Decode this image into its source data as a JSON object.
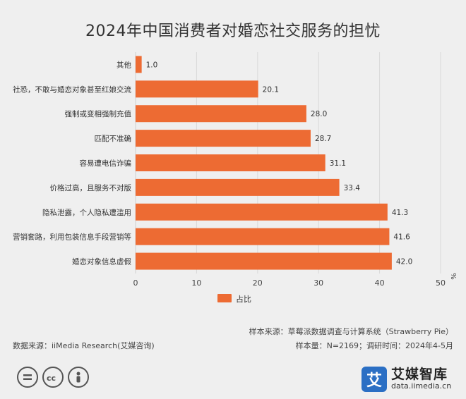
{
  "chart_data": {
    "type": "bar",
    "orientation": "horizontal",
    "title": "2024年中国消费者对婚恋社交服务的担忧",
    "categories": [
      "其他",
      "社恐，不敢与婚恋对象甚至红娘交流",
      "强制或变相强制充值",
      "匹配不准确",
      "容易遭电信诈骗",
      "价格过高，且服务不对版",
      "隐私泄露，个人隐私遭滥用",
      "营销套路，利用包装信息手段营销等",
      "婚恋对象信息虚假"
    ],
    "series": [
      {
        "name": "占比",
        "values": [
          1.0,
          20.1,
          28.0,
          28.7,
          31.1,
          33.4,
          41.3,
          41.6,
          42.0
        ],
        "color": "#ed6b33"
      }
    ],
    "data_labels": [
      "1.0",
      "20.1",
      "28.0",
      "28.7",
      "31.1",
      "33.4",
      "41.3",
      "41.6",
      "42.0"
    ],
    "xlim": [
      0,
      50
    ],
    "xticks": [
      0,
      10,
      20,
      30,
      40,
      50
    ],
    "x_unit": "%",
    "grid": "vertical",
    "legend": "bottom-center"
  },
  "source": {
    "sample_source": "样本来源：草莓派数据调查与计算系统（Strawberry Pie）",
    "data_source": "数据来源：iiMedia Research(艾媒咨询)",
    "sample_size": "样本量：N=2169；调研时间：2024年4-5月"
  },
  "logo": {
    "mark": "艾",
    "name": "艾媒智库",
    "url": "data.iimedia.cn"
  },
  "license_icons": [
    "equals-icon",
    "cc-icon",
    "person-icon"
  ]
}
